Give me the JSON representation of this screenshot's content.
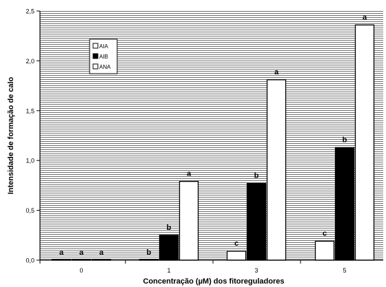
{
  "chart_data": {
    "type": "bar",
    "xlabel": "Concentração (µM) dos fitoreguladores",
    "ylabel": "Intensidade de formação de calo",
    "categories": [
      "0",
      "1",
      "3",
      "5"
    ],
    "ylim": [
      0,
      2.5
    ],
    "yticks": [
      "0,0",
      "0,5",
      "1,0",
      "1,5",
      "2,0",
      "2,5"
    ],
    "background": "horizontal-line hatch",
    "legend_position": "upper-left",
    "series": [
      {
        "name": "AIA",
        "values": [
          0.0,
          0.0,
          0.09,
          0.19
        ],
        "letters": [
          "a",
          "b",
          "c",
          "c"
        ],
        "fill": "#ffffff"
      },
      {
        "name": "AIB",
        "values": [
          0.0,
          0.25,
          0.77,
          1.13
        ],
        "letters": [
          "a",
          "b",
          "b",
          "b"
        ],
        "fill": "#000000"
      },
      {
        "name": "ANA",
        "values": [
          0.0,
          0.79,
          1.81,
          2.36
        ],
        "letters": [
          "a",
          "a",
          "a",
          "a"
        ],
        "fill": "#ffffff"
      }
    ]
  }
}
